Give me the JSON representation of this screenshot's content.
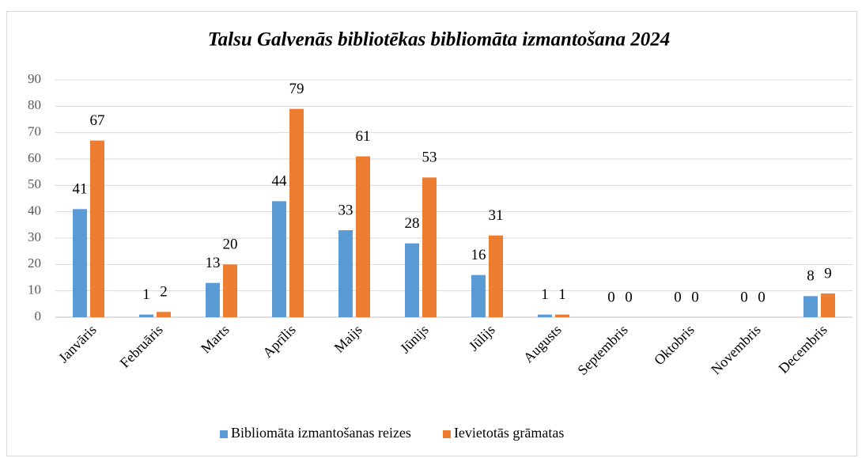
{
  "chart_data": {
    "type": "bar",
    "title": "Talsu Galvenās bibliotēkas bibliomāta izmantošana 2024",
    "categories": [
      "Janvāris",
      "Februāris",
      "Marts",
      "Aprīlis",
      "Maijs",
      "Jūnijs",
      "Jūlijs",
      "Augusts",
      "Septembris",
      "Oktobris",
      "Novembris",
      "Decembris"
    ],
    "series": [
      {
        "name": "Bibliomāta izmantošanas reizes",
        "color": "#5b9bd5",
        "values": [
          41,
          1,
          13,
          44,
          33,
          28,
          16,
          1,
          0,
          0,
          0,
          8
        ]
      },
      {
        "name": "Ievietotās grāmatas",
        "color": "#ed7d31",
        "values": [
          67,
          2,
          20,
          79,
          61,
          53,
          31,
          1,
          0,
          0,
          0,
          9
        ]
      }
    ],
    "ylim": [
      0,
      90
    ],
    "yticks": [
      0,
      10,
      20,
      30,
      40,
      50,
      60,
      70,
      80,
      90
    ],
    "grid": true,
    "legend": "bottom"
  }
}
